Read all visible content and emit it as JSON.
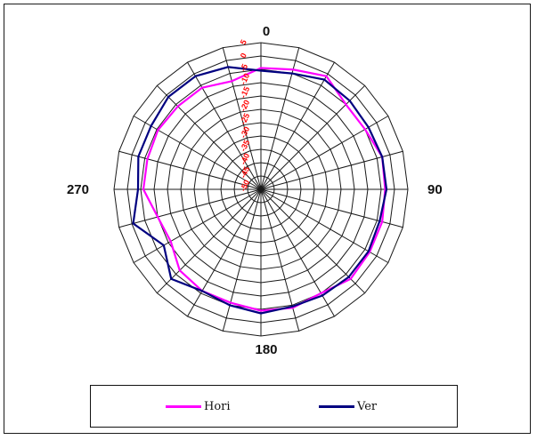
{
  "chart_data": {
    "type": "polar-line",
    "angle_labels": [
      {
        "angle": 0,
        "text": "0"
      },
      {
        "angle": 90,
        "text": "90"
      },
      {
        "angle": 180,
        "text": "180"
      },
      {
        "angle": 270,
        "text": "270"
      }
    ],
    "radial_axis": {
      "min": -50,
      "max": 5,
      "step": 5,
      "tick_labels": [
        "5",
        "0",
        "-5",
        "-10",
        "-15",
        "-20",
        "-25",
        "-30",
        "-35",
        "-40",
        "-45",
        "-50"
      ]
    },
    "angle_step": 15,
    "grid": true,
    "legend_position": "bottom",
    "series": [
      {
        "name": "Hori",
        "color": "#ff00ff",
        "angles": [
          0,
          15,
          30,
          45,
          60,
          75,
          90,
          105,
          120,
          135,
          150,
          165,
          180,
          195,
          210,
          225,
          240,
          255,
          270,
          285,
          300,
          315,
          330,
          345
        ],
        "values": [
          -4.5,
          -3.5,
          -1,
          -5,
          -5,
          -3,
          -3.5,
          -3,
          -3,
          -2.5,
          -5,
          -4,
          -4.5,
          -6,
          -6,
          -7,
          -11,
          -10,
          -6,
          -6,
          -5.5,
          -6,
          -6,
          -8
        ]
      },
      {
        "name": "Ver",
        "color": "#000080",
        "angles": [
          0,
          15,
          30,
          45,
          60,
          75,
          90,
          105,
          120,
          135,
          150,
          165,
          180,
          195,
          210,
          225,
          240,
          255,
          270,
          285,
          300,
          315,
          330,
          345
        ],
        "values": [
          -5.5,
          -5,
          -2.5,
          -3,
          -3.5,
          -3,
          -3,
          -4,
          -3.5,
          -3.5,
          -4,
          -4.5,
          -3.5,
          -5,
          -6,
          -2.5,
          -8,
          -0.5,
          -4,
          -2.5,
          -2.5,
          -1,
          -1,
          -2.5
        ]
      }
    ]
  }
}
